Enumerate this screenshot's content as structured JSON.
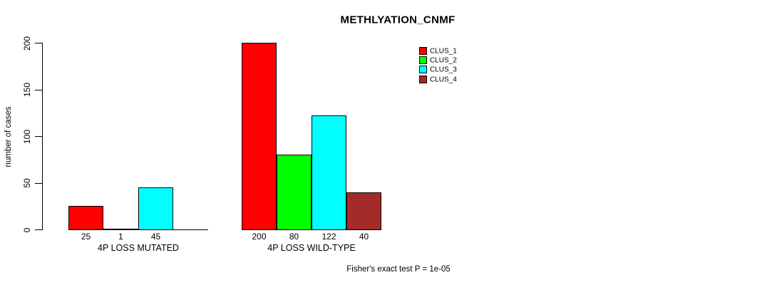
{
  "chart_data": {
    "type": "bar",
    "title": "METHLYATION_CNMF",
    "ylabel": "number of cases",
    "annotation": "Fisher's exact test P = 1e-05",
    "ylim": [
      0,
      200
    ],
    "yticks": [
      0,
      50,
      100,
      150,
      200
    ],
    "categories": [
      "4P LOSS MUTATED",
      "4P LOSS WILD-TYPE"
    ],
    "series": [
      {
        "name": "CLUS_1",
        "color": "#ff0000",
        "values": [
          25,
          200
        ]
      },
      {
        "name": "CLUS_2",
        "color": "#00ff00",
        "values": [
          1,
          80
        ]
      },
      {
        "name": "CLUS_3",
        "color": "#00ffff",
        "values": [
          45,
          122
        ]
      },
      {
        "name": "CLUS_4",
        "color": "#a52a2a",
        "values": [
          0,
          40
        ]
      }
    ],
    "bar_value_labels": [
      [
        "25",
        "1",
        "45",
        ""
      ],
      [
        "200",
        "80",
        "122",
        "40"
      ]
    ],
    "legend": {
      "entries": [
        "CLUS_1",
        "CLUS_2",
        "CLUS_3",
        "CLUS_4"
      ],
      "position": "top-right"
    },
    "grid": false,
    "axis_color": "#000000",
    "text_color": "#000000",
    "background": "#ffffff"
  }
}
